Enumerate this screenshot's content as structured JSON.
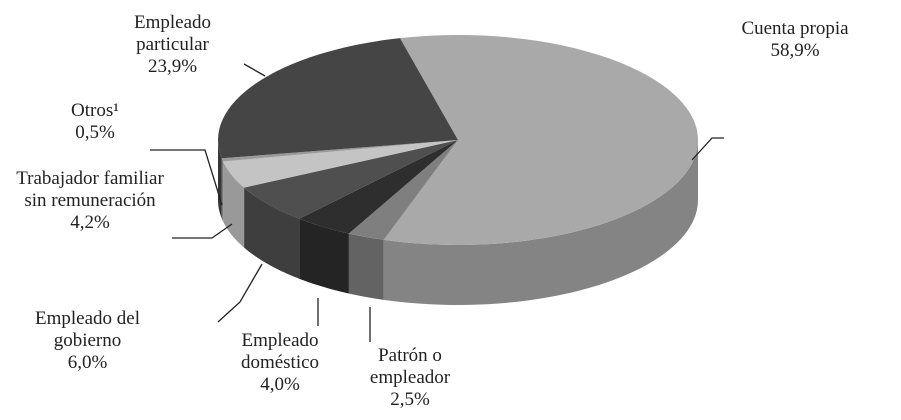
{
  "chart_data": {
    "type": "pie3d",
    "categories": [
      "Cuenta propia",
      "Patrón o empleador",
      "Empleado doméstico",
      "Empleado del gobierno",
      "Trabajador familiar sin remuneración",
      "Otros¹",
      "Empleado particular"
    ],
    "values": [
      58.9,
      2.5,
      4.0,
      6.0,
      4.2,
      0.5,
      23.9
    ],
    "value_labels": [
      "58,9%",
      "2,5%",
      "4,0%",
      "6,0%",
      "4,2%",
      "0,5%",
      "23,9%"
    ],
    "colors": [
      "#a9a9a9",
      "#7f7f7f",
      "#2e2e2e",
      "#4f4f4f",
      "#c4c4c4",
      "#9a9a9a",
      "#454545"
    ]
  }
}
